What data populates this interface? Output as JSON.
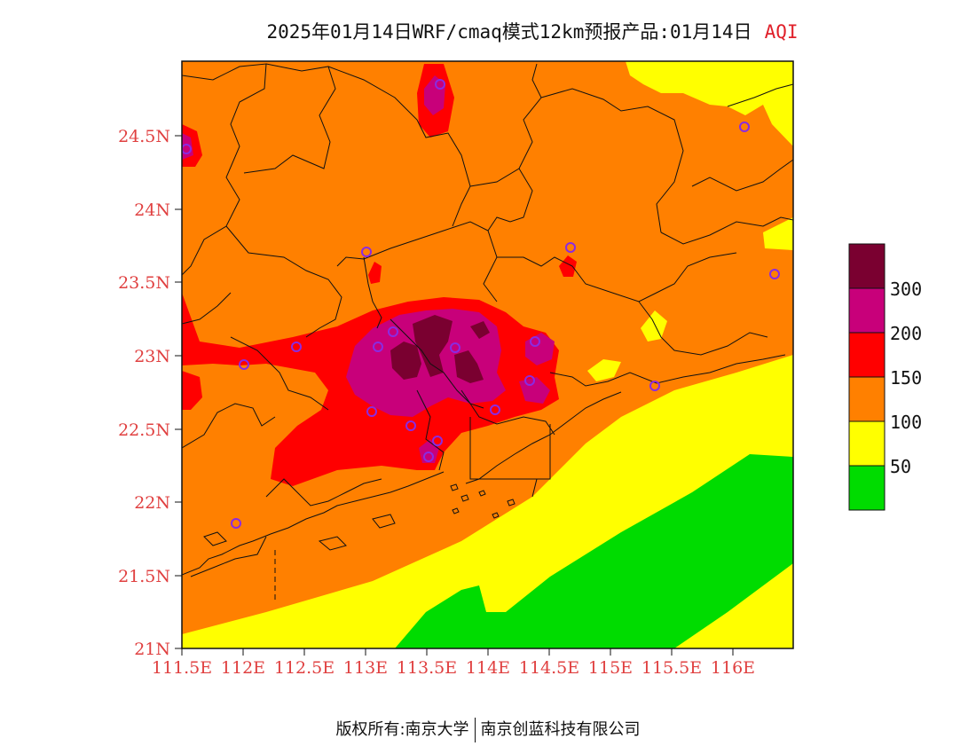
{
  "header": {
    "title": "2025年01月14日WRF/cmaq模式12km预报产品:01月14日",
    "variable": "AQI"
  },
  "axes": {
    "y_ticks": [
      "24.5N",
      "24N",
      "23.5N",
      "23N",
      "22.5N",
      "22N",
      "21.5N",
      "21N"
    ],
    "x_ticks": [
      "111.5E",
      "112E",
      "112.5E",
      "113E",
      "113.5E",
      "114E",
      "114.5E",
      "115E",
      "115.5E",
      "116E"
    ]
  },
  "legend": {
    "labels": [
      "300",
      "200",
      "150",
      "100",
      "50"
    ],
    "colors": [
      "#7a0030",
      "#c8007a",
      "#ff0000",
      "#ff8000",
      "#ffff00",
      "#00dc00"
    ]
  },
  "footer": {
    "left": "版权所有:南京大学",
    "right": "南京创蓝科技有限公司"
  },
  "colors": {
    "moderate": "#ff8000",
    "good": "#ffff00",
    "excellent": "#00dc00",
    "unhealthy": "#ff0000",
    "very_unhealthy": "#c8007a",
    "hazardous": "#7a0030",
    "station_marker": "#8a2be2",
    "tick_text": "#e04040"
  }
}
